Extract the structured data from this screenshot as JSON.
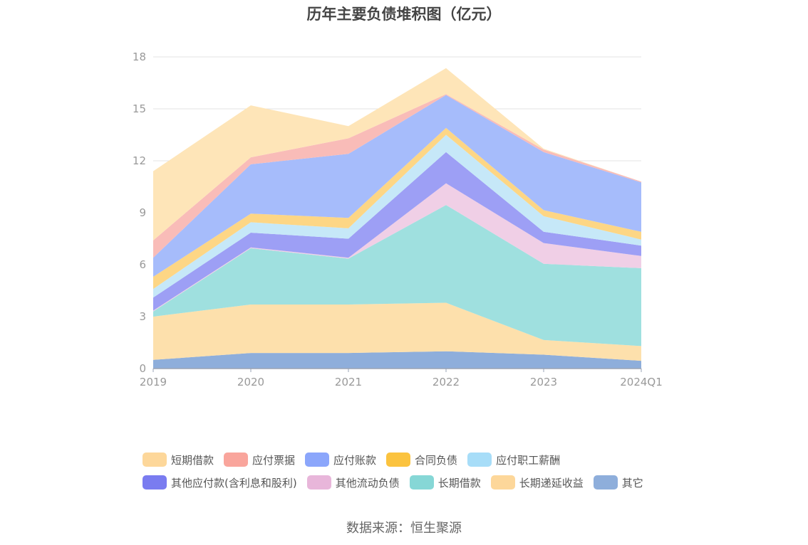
{
  "chart_data": {
    "type": "area",
    "stacked": true,
    "title": "历年主要负债堆积图（亿元）",
    "x": [
      "2019",
      "2020",
      "2021",
      "2022",
      "2023",
      "2024Q1"
    ],
    "ylim": [
      0,
      18
    ],
    "yticks": [
      0,
      3,
      6,
      9,
      12,
      15,
      18
    ],
    "grid": true,
    "legend_position": "bottom",
    "series": [
      {
        "name": "其它",
        "color": "#8eaedb",
        "values": [
          0.5,
          0.9,
          0.9,
          1.0,
          0.8,
          0.45
        ]
      },
      {
        "name": "长期递延收益",
        "color": "#fde0ac",
        "values": [
          2.5,
          2.8,
          2.8,
          2.8,
          0.85,
          0.85
        ]
      },
      {
        "name": "长期借款",
        "color": "#9fe0df",
        "values": [
          0.3,
          3.25,
          2.65,
          5.65,
          4.4,
          4.5
        ]
      },
      {
        "name": "其他流动负债",
        "color": "#f0cfe6",
        "values": [
          0.05,
          0.05,
          0.05,
          1.25,
          1.2,
          0.7
        ]
      },
      {
        "name": "其他应付款(含利息和股利)",
        "color": "#9d9ff5",
        "values": [
          0.75,
          0.85,
          1.1,
          1.8,
          0.65,
          0.6
        ]
      },
      {
        "name": "应付职工薪酬",
        "color": "#c6e8f8",
        "values": [
          0.5,
          0.6,
          0.6,
          1.0,
          0.9,
          0.35
        ]
      },
      {
        "name": "合同负债",
        "color": "#fdd685",
        "values": [
          0.7,
          0.5,
          0.6,
          0.4,
          0.35,
          0.45
        ]
      },
      {
        "name": "应付账款",
        "color": "#a6bcfb",
        "values": [
          1.1,
          2.85,
          3.7,
          1.9,
          3.35,
          2.85
        ]
      },
      {
        "name": "应付票据",
        "color": "#f9bcb8",
        "values": [
          1.0,
          0.4,
          0.9,
          0.05,
          0.15,
          0.05
        ]
      },
      {
        "name": "短期借款",
        "color": "#fee5b8",
        "values": [
          4.0,
          3.0,
          0.7,
          1.5,
          0.05,
          0.0
        ]
      }
    ]
  },
  "legend": {
    "row1": [
      {
        "name": "短期借款",
        "color": "#fdd79a"
      },
      {
        "name": "应付票据",
        "color": "#f9a59c"
      },
      {
        "name": "应付账款",
        "color": "#8ba6fb"
      },
      {
        "name": "合同负债",
        "color": "#fbc33f"
      },
      {
        "name": "应付职工薪酬",
        "color": "#a7ddf8"
      }
    ],
    "row2": [
      {
        "name": "其他应付款(含利息和股利)",
        "color": "#7a7cf0"
      },
      {
        "name": "其他流动负债",
        "color": "#e8b6da"
      },
      {
        "name": "长期借款",
        "color": "#86d7d6"
      },
      {
        "name": "长期递延收益",
        "color": "#fdd79a"
      },
      {
        "name": "其它",
        "color": "#8eaedb"
      }
    ]
  },
  "source": "数据来源：恒生聚源"
}
